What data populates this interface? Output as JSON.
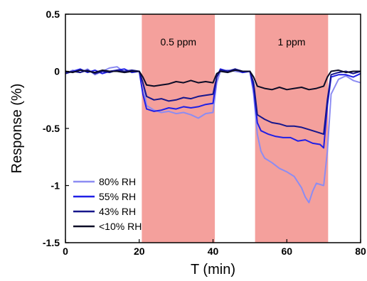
{
  "chart_data": {
    "type": "line",
    "xlabel": "T (min)",
    "ylabel": "Response (%)",
    "xlim": [
      0,
      80
    ],
    "ylim": [
      -1.5,
      0.5
    ],
    "x_ticks": [
      "0",
      "20",
      "40",
      "60",
      "80"
    ],
    "y_ticks": [
      "0.5",
      "0",
      "-0.5",
      "-1",
      "-1.5"
    ],
    "grid": false,
    "legend_position": "bottom-left",
    "shaded_regions": [
      {
        "x_start": 20.7,
        "x_end": 40.5,
        "label": "0.5 ppm",
        "color": "#f4a09c"
      },
      {
        "x_start": 51.4,
        "x_end": 71.2,
        "label": "1 ppm",
        "color": "#f4a09c"
      }
    ],
    "series": [
      {
        "name": "80% RH",
        "color": "#8c8cf2",
        "points": [
          [
            0,
            -0.02
          ],
          [
            2,
            0.01
          ],
          [
            4,
            -0.01
          ],
          [
            6,
            0.02
          ],
          [
            8,
            -0.03
          ],
          [
            10,
            0.0
          ],
          [
            12,
            0.03
          ],
          [
            14,
            0.04
          ],
          [
            16,
            -0.01
          ],
          [
            18,
            0.0
          ],
          [
            20,
            0.0
          ],
          [
            21,
            -0.1
          ],
          [
            22,
            -0.3
          ],
          [
            24,
            -0.34
          ],
          [
            26,
            -0.36
          ],
          [
            28,
            -0.35
          ],
          [
            30,
            -0.37
          ],
          [
            32,
            -0.36
          ],
          [
            34,
            -0.38
          ],
          [
            36,
            -0.41
          ],
          [
            38,
            -0.37
          ],
          [
            40,
            -0.36
          ],
          [
            41,
            -0.1
          ],
          [
            42,
            0.0
          ],
          [
            44,
            0.01
          ],
          [
            46,
            0.0
          ],
          [
            48,
            -0.01
          ],
          [
            50,
            0.0
          ],
          [
            51,
            -0.2
          ],
          [
            52,
            -0.55
          ],
          [
            53,
            -0.7
          ],
          [
            54,
            -0.76
          ],
          [
            56,
            -0.8
          ],
          [
            58,
            -0.85
          ],
          [
            60,
            -0.88
          ],
          [
            62,
            -0.92
          ],
          [
            64,
            -1.02
          ],
          [
            65,
            -1.1
          ],
          [
            66,
            -1.15
          ],
          [
            67,
            -1.05
          ],
          [
            68,
            -0.98
          ],
          [
            70,
            -1.0
          ],
          [
            71,
            -0.7
          ],
          [
            72,
            -0.2
          ],
          [
            74,
            -0.07
          ],
          [
            76,
            -0.04
          ],
          [
            78,
            -0.08
          ],
          [
            80,
            -0.1
          ]
        ]
      },
      {
        "name": "55% RH",
        "color": "#1f1fe6",
        "points": [
          [
            0,
            -0.01
          ],
          [
            2,
            0.0
          ],
          [
            4,
            0.02
          ],
          [
            6,
            -0.01
          ],
          [
            8,
            0.01
          ],
          [
            10,
            -0.02
          ],
          [
            12,
            0.0
          ],
          [
            14,
            0.01
          ],
          [
            16,
            0.02
          ],
          [
            18,
            -0.01
          ],
          [
            20,
            0.0
          ],
          [
            21,
            -0.2
          ],
          [
            22,
            -0.33
          ],
          [
            24,
            -0.35
          ],
          [
            26,
            -0.34
          ],
          [
            28,
            -0.32
          ],
          [
            30,
            -0.33
          ],
          [
            32,
            -0.31
          ],
          [
            34,
            -0.32
          ],
          [
            36,
            -0.31
          ],
          [
            38,
            -0.29
          ],
          [
            40,
            -0.28
          ],
          [
            41,
            -0.05
          ],
          [
            42,
            0.02
          ],
          [
            44,
            0.0
          ],
          [
            46,
            0.02
          ],
          [
            48,
            -0.01
          ],
          [
            50,
            0.0
          ],
          [
            51,
            -0.15
          ],
          [
            52,
            -0.45
          ],
          [
            53,
            -0.52
          ],
          [
            55,
            -0.55
          ],
          [
            57,
            -0.57
          ],
          [
            59,
            -0.58
          ],
          [
            61,
            -0.58
          ],
          [
            63,
            -0.61
          ],
          [
            65,
            -0.6
          ],
          [
            67,
            -0.63
          ],
          [
            69,
            -0.64
          ],
          [
            70,
            -0.67
          ],
          [
            71,
            -0.3
          ],
          [
            72,
            -0.05
          ],
          [
            74,
            -0.03
          ],
          [
            76,
            -0.03
          ],
          [
            78,
            -0.05
          ],
          [
            80,
            -0.02
          ]
        ]
      },
      {
        "name": "43% RH",
        "color": "#16168c",
        "points": [
          [
            0,
            -0.02
          ],
          [
            2,
            0.0
          ],
          [
            4,
            -0.01
          ],
          [
            6,
            0.01
          ],
          [
            8,
            -0.02
          ],
          [
            10,
            0.0
          ],
          [
            12,
            -0.01
          ],
          [
            14,
            0.01
          ],
          [
            16,
            0.0
          ],
          [
            18,
            0.01
          ],
          [
            20,
            0.0
          ],
          [
            21,
            -0.1
          ],
          [
            22,
            -0.22
          ],
          [
            24,
            -0.25
          ],
          [
            26,
            -0.24
          ],
          [
            28,
            -0.26
          ],
          [
            30,
            -0.25
          ],
          [
            32,
            -0.23
          ],
          [
            34,
            -0.24
          ],
          [
            36,
            -0.22
          ],
          [
            38,
            -0.21
          ],
          [
            40,
            -0.2
          ],
          [
            41,
            -0.05
          ],
          [
            42,
            0.01
          ],
          [
            44,
            0.0
          ],
          [
            46,
            0.02
          ],
          [
            48,
            0.0
          ],
          [
            50,
            0.0
          ],
          [
            51,
            -0.1
          ],
          [
            52,
            -0.38
          ],
          [
            54,
            -0.42
          ],
          [
            56,
            -0.45
          ],
          [
            58,
            -0.46
          ],
          [
            60,
            -0.48
          ],
          [
            62,
            -0.48
          ],
          [
            64,
            -0.49
          ],
          [
            66,
            -0.51
          ],
          [
            68,
            -0.53
          ],
          [
            70,
            -0.55
          ],
          [
            71,
            -0.25
          ],
          [
            72,
            -0.03
          ],
          [
            74,
            -0.01
          ],
          [
            76,
            0.0
          ],
          [
            78,
            -0.02
          ],
          [
            80,
            0.0
          ]
        ]
      },
      {
        "name": "<10% RH",
        "color": "#0c0c26",
        "points": [
          [
            0,
            0.0
          ],
          [
            2,
            -0.01
          ],
          [
            4,
            0.01
          ],
          [
            6,
            0.0
          ],
          [
            8,
            -0.01
          ],
          [
            10,
            0.01
          ],
          [
            12,
            0.0
          ],
          [
            14,
            0.0
          ],
          [
            16,
            -0.01
          ],
          [
            18,
            0.0
          ],
          [
            20,
            0.0
          ],
          [
            21,
            -0.05
          ],
          [
            22,
            -0.12
          ],
          [
            24,
            -0.13
          ],
          [
            26,
            -0.12
          ],
          [
            28,
            -0.11
          ],
          [
            30,
            -0.09
          ],
          [
            32,
            -0.1
          ],
          [
            34,
            -0.08
          ],
          [
            36,
            -0.1
          ],
          [
            38,
            -0.09
          ],
          [
            40,
            -0.1
          ],
          [
            41,
            -0.02
          ],
          [
            42,
            0.0
          ],
          [
            44,
            -0.01
          ],
          [
            46,
            0.01
          ],
          [
            48,
            0.0
          ],
          [
            50,
            0.0
          ],
          [
            51,
            -0.05
          ],
          [
            52,
            -0.13
          ],
          [
            54,
            -0.15
          ],
          [
            56,
            -0.16
          ],
          [
            58,
            -0.14
          ],
          [
            60,
            -0.16
          ],
          [
            62,
            -0.15
          ],
          [
            64,
            -0.14
          ],
          [
            66,
            -0.16
          ],
          [
            68,
            -0.15
          ],
          [
            70,
            -0.13
          ],
          [
            71,
            -0.05
          ],
          [
            72,
            0.0
          ],
          [
            74,
            0.01
          ],
          [
            76,
            -0.01
          ],
          [
            78,
            0.0
          ],
          [
            80,
            0.0
          ]
        ]
      }
    ]
  }
}
